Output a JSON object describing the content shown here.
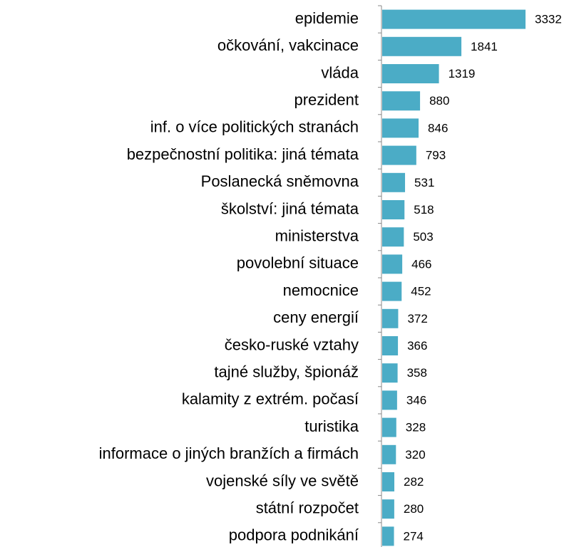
{
  "chart_data": {
    "type": "barh",
    "color": "#4bacc6",
    "categories": [
      "epidemie",
      "očkování, vakcinace",
      "vláda",
      "prezident",
      "inf. o více politických stranách",
      "bezpečnostní politika: jiná témata",
      "Poslanecká sněmovna",
      "školství: jiná témata",
      "ministerstva",
      "povolební situace",
      "nemocnice",
      "ceny energií",
      "česko-ruské vztahy",
      "tajné služby, špionáž",
      "kalamity z extrém. počasí",
      "turistika",
      "informace o jiných branžích a firmách",
      "vojenské síly ve světě",
      "státní rozpočet",
      "podpora podnikání"
    ],
    "values": [
      3332,
      1841,
      1319,
      880,
      846,
      793,
      531,
      518,
      503,
      466,
      452,
      372,
      366,
      358,
      346,
      328,
      320,
      282,
      280,
      274
    ]
  }
}
